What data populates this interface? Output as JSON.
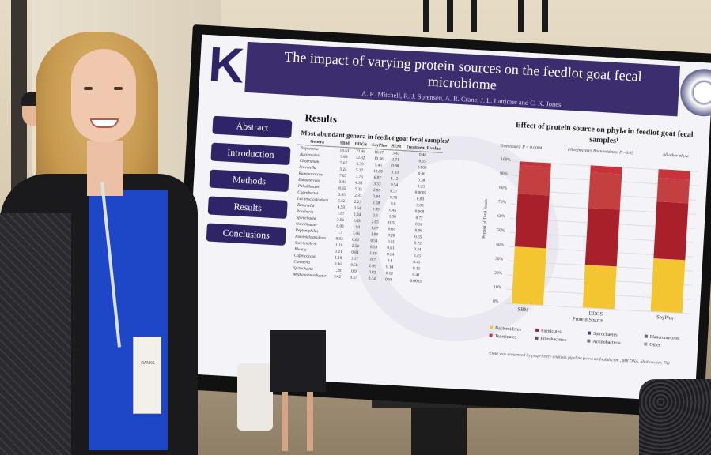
{
  "poster": {
    "logo_letter": "K",
    "title": "The impact of varying protein sources on the feedlot goat fecal microbiome",
    "authors": "A. R. Mitchell, R. J. Sorensen, A. R. Crane, J. L. Lattimer and C. K. Jones",
    "nav": [
      "Abstract",
      "Introduction",
      "Methods",
      "Results",
      "Conclusions"
    ],
    "results_heading": "Results",
    "table_heading": "Most abundant genera in feedlot goat fecal samples¹",
    "table_headers": [
      "Genera",
      "SBM",
      "DDGS",
      "SoyPlus",
      "SEM",
      "Treatment P value"
    ],
    "table_rows": [
      [
        "Treponema",
        "18.53",
        "22.46",
        "18.67",
        "3.43",
        "0.46"
      ],
      [
        "Bacteroides",
        "9.63",
        "12.32",
        "10.56",
        "1.71",
        "0.55"
      ],
      [
        "Clostridium",
        "5.67",
        "6.39",
        "5.46",
        "0.88",
        "0.003"
      ],
      [
        "Prevotella",
        "5.24",
        "5.27",
        "10.09",
        "1.93",
        "0.06"
      ],
      [
        "Ruminococcus",
        "7.67",
        "7.76",
        "6.07",
        "1.12",
        "0.38"
      ],
      [
        "Eubacterium",
        "3.93",
        "4.33",
        "3.53",
        "0.54",
        "0.23"
      ],
      [
        "Paludibacter",
        "8.35",
        "5.25",
        "2.98",
        "0.37",
        "0.0005"
      ],
      [
        "Coprobacter",
        "3.95",
        "2.33",
        "2.94",
        "0.78",
        "0.09"
      ],
      [
        "Lachnoclostridium",
        "5.52",
        "2.23",
        "2.58",
        "0.6",
        "0.06"
      ],
      [
        "Tannerella",
        "4.59",
        "3.64",
        "1.99",
        "0.45",
        "0.008"
      ],
      [
        "Roseburia",
        "1.87",
        "2.04",
        "2.6",
        "1.38",
        "0.77"
      ],
      [
        "Spirochaeta",
        "2.06",
        "1.63",
        "2.05",
        "0.32",
        "0.56"
      ],
      [
        "Oscillibacter",
        "0.99",
        "1.93",
        "1.87",
        "0.69",
        "0.06"
      ],
      [
        "Peptoniphilus",
        "1.7",
        "1.46",
        "1.08",
        "0.28",
        "0.55"
      ],
      [
        "Ruminiclostridium",
        "0.93",
        "0.61",
        "0.53",
        "0.61",
        "0.72"
      ],
      [
        "Succinivibrio",
        "1.18",
        "2.54",
        "0.53",
        "0.61",
        "0.24"
      ],
      [
        "Blautia",
        "1.21",
        "0.84",
        "1.18",
        "0.24",
        "0.45"
      ],
      [
        "Coprococcus",
        "1.18",
        "1.17",
        "0.7",
        "0.4",
        "0.45"
      ],
      [
        "Catonella",
        "0.86",
        "0.58",
        "1.09",
        "0.14",
        "0.15"
      ],
      [
        "Spirochaeta",
        "1.29",
        "0.9",
        "0.82",
        "0.12",
        "0.41"
      ],
      [
        "Methanobrevibacter",
        "3.42",
        "0.57",
        "0.34",
        "0.83",
        "0.0003"
      ]
    ],
    "chart_title": "Effect of protein source on phyla in feedlot goat fecal samples¹",
    "chart_notes": [
      "Tenericutes: P = 0.0004",
      "Fibrobacteres Bacteroidetes: P =0.05",
      "All other phyla"
    ],
    "chart_ylabel": "Percent of Total Reads",
    "chart_xtitle": "Protein Source",
    "legend": [
      "Bacteroidetes",
      "Firmicutes",
      "Spirochaetes",
      "Planctomycetes",
      "Tenericutes",
      "Fibrobacteres",
      "Actinobacteria",
      "Other"
    ],
    "footnote": "¹Data was sequenced by proprietary analysis pipeline (www.mrdnalab.com , MR DNA, Shallowater, TX)",
    "colors": {
      "title_bar": "#3c2d6e",
      "nav": "#2f2468",
      "bar_yellow": "#f2c531",
      "bar_red": "#a8202a",
      "bar_crimson": "#c44040"
    }
  },
  "badge": {
    "line1": "RANKS",
    "line2": "..."
  },
  "chart_data": {
    "type": "bar",
    "categories": [
      "SBM",
      "DDGS",
      "SoyPlus"
    ],
    "series": [
      {
        "name": "Bacteroidetes",
        "values": [
          40,
          30,
          37
        ]
      },
      {
        "name": "Firmicutes",
        "values": [
          37,
          40,
          40
        ]
      },
      {
        "name": "Tenericutes",
        "values": [
          20,
          25,
          17
        ]
      },
      {
        "name": "Other",
        "values": [
          3,
          5,
          6
        ]
      }
    ],
    "ylim": [
      0,
      100
    ],
    "yticks": [
      "0%",
      "10%",
      "20%",
      "30%",
      "40%",
      "50%",
      "60%",
      "70%",
      "80%",
      "90%",
      "100%"
    ],
    "xlabel": "Protein Source",
    "ylabel": "Percent of Total Reads",
    "title": "Effect of protein source on phyla in feedlot goat fecal samples¹"
  }
}
